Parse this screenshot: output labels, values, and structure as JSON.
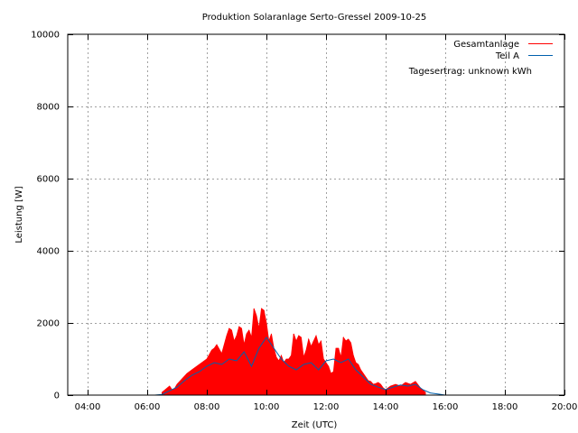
{
  "chart_data": {
    "type": "area",
    "title": "Produktion Solaranlage Serto-Gressel 2009-10-25",
    "xlabel": "Zeit (UTC)",
    "ylabel": "Leistung [W]",
    "xlim": [
      "03:20",
      "20:00"
    ],
    "ylim": [
      0,
      10000
    ],
    "xticks": [
      "04:00",
      "06:00",
      "08:00",
      "10:00",
      "12:00",
      "14:00",
      "16:00",
      "18:00",
      "20:00"
    ],
    "yticks": [
      0,
      2000,
      4000,
      6000,
      8000,
      10000
    ],
    "grid": true,
    "legend_position": "top-right",
    "annotation": "Tagesertrag: unknown kWh",
    "colors": {
      "gesamt": "#ff0000",
      "teil_a": "#0060ad",
      "grid": "#a0a0a0"
    },
    "series": [
      {
        "name": "Gesamtanlage",
        "style": "impulses",
        "color": "#ff0000",
        "x": [
          "06:30",
          "06:45",
          "06:50",
          "06:55",
          "07:00",
          "07:10",
          "07:20",
          "07:30",
          "07:40",
          "07:50",
          "08:00",
          "08:10",
          "08:15",
          "08:20",
          "08:30",
          "08:40",
          "08:45",
          "08:50",
          "08:55",
          "09:00",
          "09:05",
          "09:10",
          "09:15",
          "09:20",
          "09:25",
          "09:30",
          "09:35",
          "09:40",
          "09:45",
          "09:50",
          "09:55",
          "10:00",
          "10:05",
          "10:10",
          "10:15",
          "10:20",
          "10:25",
          "10:30",
          "10:35",
          "10:40",
          "10:45",
          "10:50",
          "10:55",
          "11:00",
          "11:05",
          "11:10",
          "11:15",
          "11:20",
          "11:25",
          "11:30",
          "11:35",
          "11:40",
          "11:45",
          "11:50",
          "11:55",
          "12:00",
          "12:05",
          "12:10",
          "12:15",
          "12:20",
          "12:25",
          "12:30",
          "12:35",
          "12:40",
          "12:45",
          "12:50",
          "12:55",
          "13:00",
          "13:05",
          "13:10",
          "13:15",
          "13:20",
          "13:25",
          "13:30",
          "13:35",
          "13:40",
          "13:45",
          "13:50",
          "13:55",
          "14:00",
          "14:10",
          "14:20",
          "14:30",
          "14:40",
          "14:50",
          "15:00",
          "15:10",
          "15:20"
        ],
        "values": [
          80,
          250,
          150,
          180,
          300,
          450,
          600,
          700,
          800,
          900,
          1000,
          1250,
          1300,
          1400,
          1150,
          1650,
          1850,
          1800,
          1500,
          1650,
          1900,
          1850,
          1400,
          1700,
          1800,
          1600,
          2400,
          2200,
          1850,
          2400,
          2350,
          2000,
          1500,
          1700,
          1300,
          1050,
          950,
          1100,
          900,
          1000,
          1000,
          1100,
          1700,
          1500,
          1650,
          1600,
          1050,
          1250,
          1550,
          1350,
          1500,
          1650,
          1400,
          1500,
          1000,
          900,
          800,
          600,
          650,
          1300,
          1300,
          1050,
          1600,
          1500,
          1550,
          1450,
          1100,
          900,
          850,
          700,
          600,
          500,
          400,
          380,
          300,
          320,
          350,
          300,
          200,
          150,
          250,
          300,
          250,
          350,
          300,
          380,
          200,
          80
        ]
      },
      {
        "name": "Teil A",
        "style": "lines",
        "color": "#0060ad",
        "x": [
          "06:15",
          "06:30",
          "06:45",
          "07:00",
          "07:15",
          "07:30",
          "07:45",
          "08:00",
          "08:15",
          "08:30",
          "08:45",
          "09:00",
          "09:15",
          "09:30",
          "09:45",
          "10:00",
          "10:15",
          "10:30",
          "10:45",
          "11:00",
          "11:15",
          "11:30",
          "11:45",
          "12:00",
          "12:15",
          "12:30",
          "12:45",
          "13:00",
          "13:15",
          "13:30",
          "13:45",
          "14:00",
          "14:15",
          "14:30",
          "14:45",
          "15:00",
          "15:15",
          "15:30",
          "15:45",
          "16:00"
        ],
        "values": [
          0,
          20,
          120,
          220,
          400,
          550,
          650,
          800,
          900,
          850,
          1000,
          950,
          1200,
          800,
          1300,
          1600,
          1300,
          1000,
          800,
          700,
          850,
          900,
          700,
          950,
          1000,
          900,
          1000,
          700,
          500,
          300,
          220,
          150,
          220,
          280,
          250,
          300,
          150,
          60,
          30,
          0
        ]
      }
    ]
  }
}
